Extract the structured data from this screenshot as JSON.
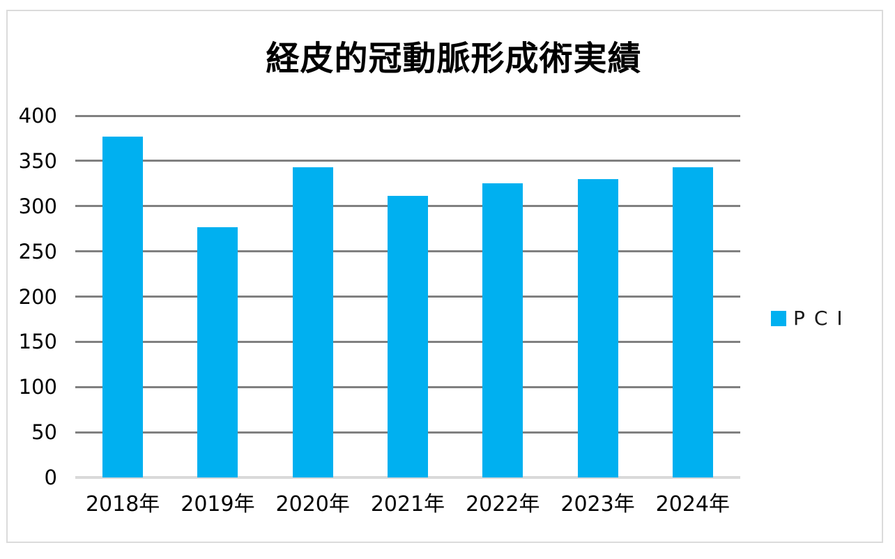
{
  "chart": {
    "title": "経皮的冠動脈形成術実績",
    "legend": {
      "label": "ＰＣＩ",
      "swatch_color": "#00B0F0"
    }
  },
  "chart_data": {
    "type": "bar",
    "title": "経皮的冠動脈形成術実績",
    "categories": [
      "2018年",
      "2019年",
      "2020年",
      "2021年",
      "2022年",
      "2023年",
      "2024年"
    ],
    "series": [
      {
        "name": "ＰＣＩ",
        "values": [
          377,
          277,
          343,
          311,
          325,
          330,
          343
        ]
      }
    ],
    "xlabel": "",
    "ylabel": "",
    "ylim": [
      0,
      400
    ],
    "ytick_step": 50,
    "yticks": [
      0,
      50,
      100,
      150,
      200,
      250,
      300,
      350,
      400
    ],
    "grid": true,
    "legend_position": "right",
    "bar_color": "#00B0F0",
    "gridline_color": "#808080",
    "axis_line_color": "#D9D9D9",
    "text_color": "#000000",
    "background_color": "#FFFFFF"
  }
}
